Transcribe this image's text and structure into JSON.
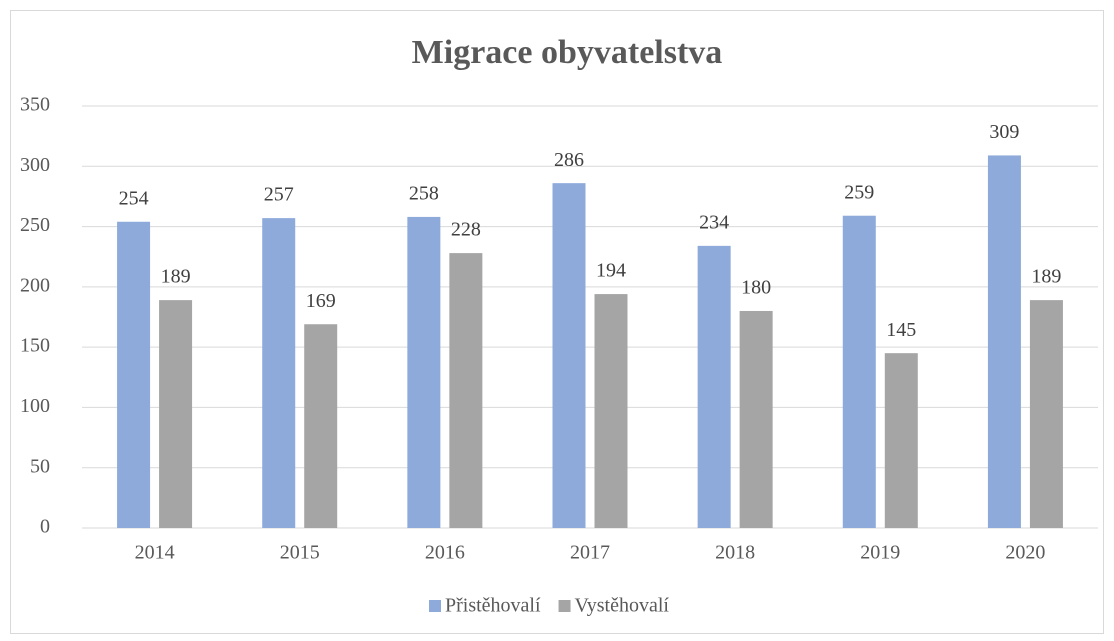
{
  "chart_data": {
    "type": "bar",
    "title": "Migrace obyvatelstva",
    "categories": [
      "2014",
      "2015",
      "2016",
      "2017",
      "2018",
      "2019",
      "2020"
    ],
    "series": [
      {
        "name": "Přistěhovalí",
        "color": "#8eaadb",
        "values": [
          254,
          257,
          258,
          286,
          234,
          259,
          309
        ]
      },
      {
        "name": "Vystěhovalí",
        "color": "#a5a5a5",
        "values": [
          189,
          169,
          228,
          194,
          180,
          145,
          189
        ]
      }
    ],
    "ylim": [
      0,
      350
    ],
    "yticks": [
      0,
      50,
      100,
      150,
      200,
      250,
      300,
      350
    ],
    "grid": true,
    "legend": "bottom"
  }
}
